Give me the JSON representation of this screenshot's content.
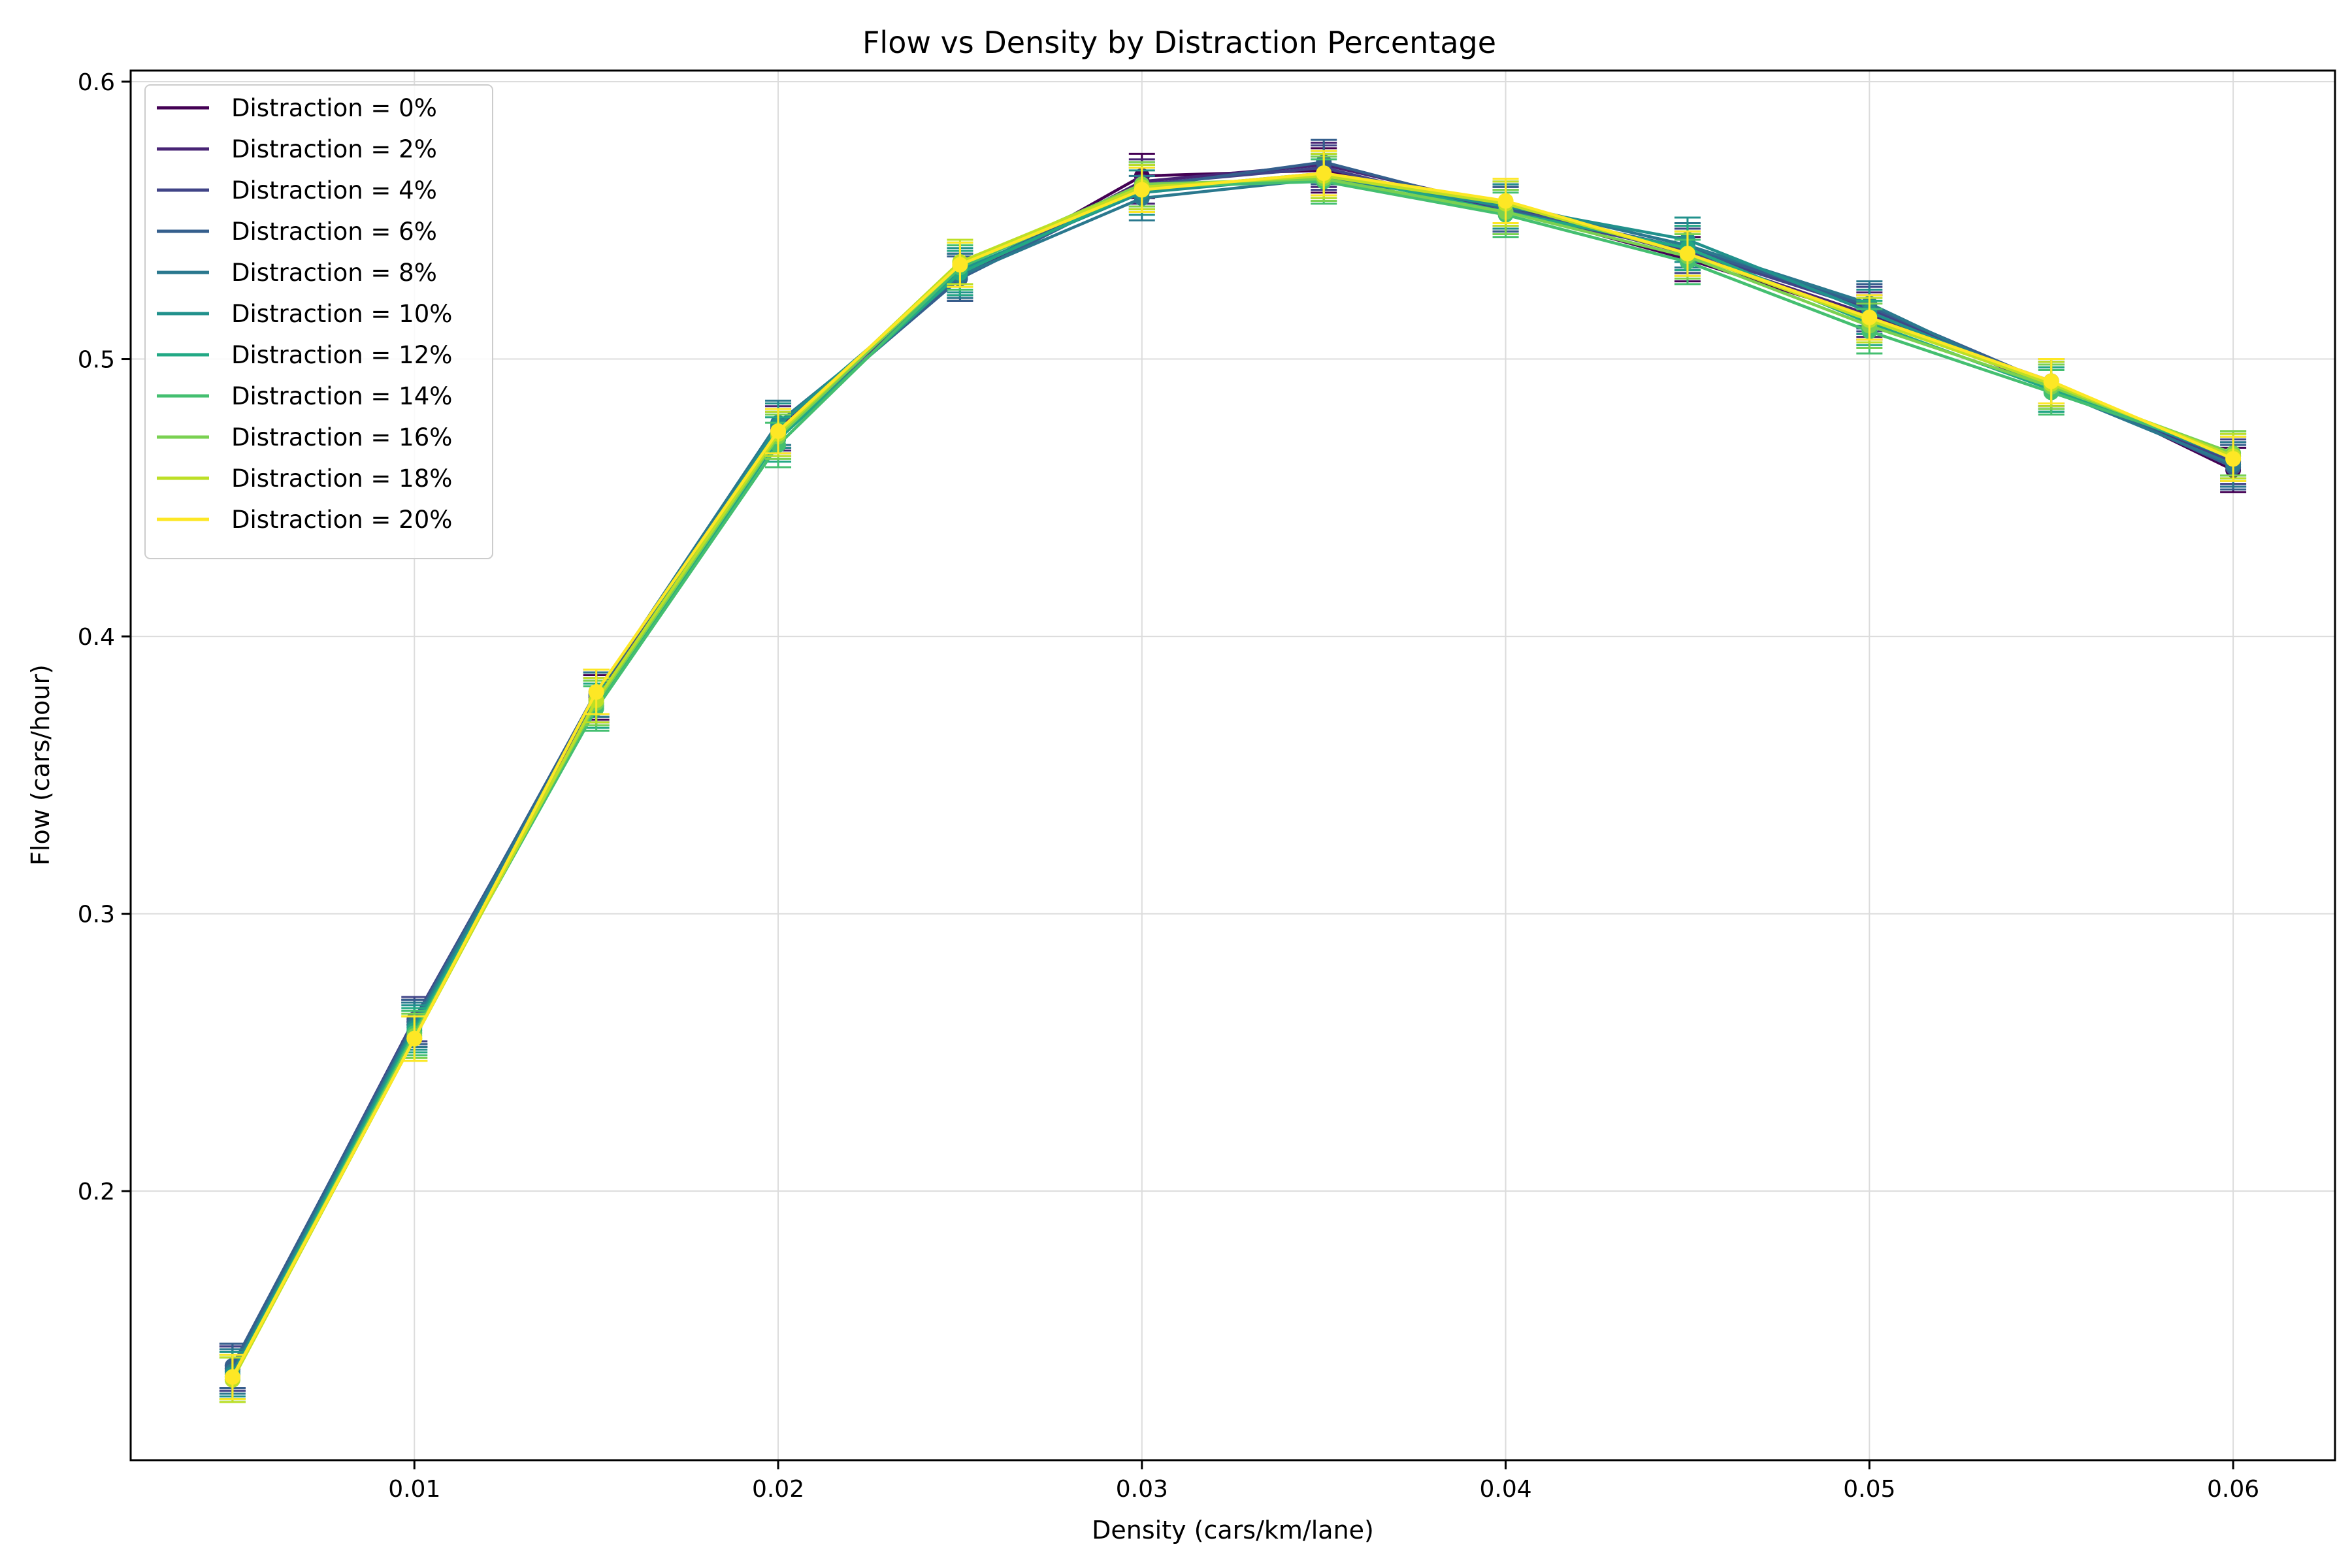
{
  "chart_data": {
    "type": "line",
    "title": "Flow vs Density by Distraction Percentage",
    "xlabel": "Density (cars/km/lane)",
    "ylabel": "Flow (cars/hour)",
    "xlim": [
      0.0022,
      0.0628
    ],
    "ylim": [
      0.103,
      0.604
    ],
    "x_ticks": [
      0.01,
      0.02,
      0.03,
      0.04,
      0.05,
      0.06
    ],
    "x_tick_labels": [
      "0.01",
      "0.02",
      "0.03",
      "0.04",
      "0.05",
      "0.06"
    ],
    "y_ticks": [
      0.2,
      0.3,
      0.4,
      0.5,
      0.6
    ],
    "y_tick_labels": [
      "0.2",
      "0.3",
      "0.4",
      "0.5",
      "0.6"
    ],
    "grid": true,
    "legend_position": "top-left",
    "x": [
      0.005,
      0.01,
      0.015,
      0.02,
      0.025,
      0.03,
      0.035,
      0.04,
      0.045,
      0.05,
      0.055,
      0.06
    ],
    "error": 0.008,
    "series": [
      {
        "name": "Distraction = 0%",
        "color": "#440154",
        "values": [
          0.136,
          0.26,
          0.378,
          0.476,
          0.529,
          0.566,
          0.568,
          0.554,
          0.536,
          0.515,
          0.492,
          0.46
        ]
      },
      {
        "name": "Distraction = 2%",
        "color": "#482475",
        "values": [
          0.137,
          0.261,
          0.377,
          0.475,
          0.53,
          0.564,
          0.57,
          0.555,
          0.538,
          0.516,
          0.49,
          0.462
        ]
      },
      {
        "name": "Distraction = 4%",
        "color": "#414487",
        "values": [
          0.136,
          0.262,
          0.379,
          0.474,
          0.531,
          0.563,
          0.569,
          0.553,
          0.539,
          0.518,
          0.491,
          0.463
        ]
      },
      {
        "name": "Distraction = 6%",
        "color": "#355f8d",
        "values": [
          0.137,
          0.261,
          0.38,
          0.473,
          0.529,
          0.562,
          0.571,
          0.554,
          0.54,
          0.519,
          0.491,
          0.461
        ]
      },
      {
        "name": "Distraction = 8%",
        "color": "#2a788e",
        "values": [
          0.135,
          0.26,
          0.379,
          0.477,
          0.53,
          0.558,
          0.565,
          0.556,
          0.541,
          0.52,
          0.489,
          0.462
        ]
      },
      {
        "name": "Distraction = 10%",
        "color": "#21918c",
        "values": [
          0.134,
          0.259,
          0.376,
          0.476,
          0.532,
          0.56,
          0.566,
          0.555,
          0.543,
          0.517,
          0.49,
          0.464
        ]
      },
      {
        "name": "Distraction = 12%",
        "color": "#22a884",
        "values": [
          0.133,
          0.258,
          0.375,
          0.471,
          0.531,
          0.561,
          0.567,
          0.553,
          0.54,
          0.513,
          0.489,
          0.465
        ]
      },
      {
        "name": "Distraction = 14%",
        "color": "#44bf70",
        "values": [
          0.132,
          0.257,
          0.374,
          0.469,
          0.533,
          0.562,
          0.564,
          0.552,
          0.535,
          0.51,
          0.488,
          0.466
        ]
      },
      {
        "name": "Distraction = 16%",
        "color": "#7ad151",
        "values": [
          0.133,
          0.256,
          0.376,
          0.472,
          0.534,
          0.563,
          0.565,
          0.553,
          0.537,
          0.512,
          0.49,
          0.466
        ]
      },
      {
        "name": "Distraction = 18%",
        "color": "#bddf26",
        "values": [
          0.132,
          0.255,
          0.377,
          0.473,
          0.535,
          0.562,
          0.566,
          0.556,
          0.538,
          0.514,
          0.491,
          0.465
        ]
      },
      {
        "name": "Distraction = 20%",
        "color": "#fde725",
        "values": [
          0.133,
          0.255,
          0.38,
          0.474,
          0.534,
          0.561,
          0.567,
          0.557,
          0.538,
          0.515,
          0.492,
          0.464
        ]
      }
    ]
  }
}
